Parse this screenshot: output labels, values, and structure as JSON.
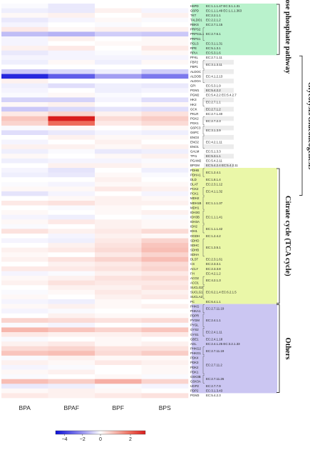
{
  "chart_data": {
    "type": "heatmap",
    "columns": [
      "BPA",
      "BPAF",
      "BPF",
      "BPS"
    ],
    "rows": [
      {
        "gene": "H6PD",
        "ec": [
          "EC:1.1.1.47",
          "EC:3.1.1.31"
        ],
        "values": [
          -0.1,
          -0.4,
          0.0,
          0.0
        ]
      },
      {
        "gene": "G6PD",
        "ec": [
          "EC:1.1.1.49",
          "EC:1.1.1.363"
        ],
        "values": [
          -0.3,
          -0.4,
          0.2,
          -0.2
        ]
      },
      {
        "gene": "TKT",
        "ec": [
          "EC:2.2.1.1"
        ],
        "values": [
          0.1,
          0.2,
          0.0,
          0.2
        ]
      },
      {
        "gene": "TALDO1",
        "ec": [
          "EC:2.2.1.2"
        ],
        "values": [
          -0.4,
          -0.2,
          0.1,
          -0.1
        ]
      },
      {
        "gene": "RBKS",
        "ec": [
          "EC:2.7.1.15"
        ],
        "values": [
          -0.2,
          0.0,
          -0.1,
          0.0
        ]
      },
      {
        "gene": "PRPS2",
        "ec": [
          "EC:2.7.6.1"
        ],
        "values": [
          0.3,
          0.1,
          0.2,
          0.2
        ]
      },
      {
        "gene": "PRPS1L1",
        "ec": [
          "EC:2.7.6.1"
        ],
        "values": [
          -1.2,
          -1.4,
          -0.9,
          -1.0
        ]
      },
      {
        "gene": "PRPS1",
        "ec": [
          "EC:2.7.6.1"
        ],
        "values": [
          -0.2,
          0.2,
          0.0,
          0.1
        ]
      },
      {
        "gene": "PGLS",
        "ec": [
          "EC:3.1.1.31"
        ],
        "values": [
          -0.2,
          0.0,
          0.1,
          0.1
        ]
      },
      {
        "gene": "RPE",
        "ec": [
          "EC:5.1.3.1"
        ],
        "values": [
          0.2,
          0.3,
          0.0,
          0.3
        ]
      },
      {
        "gene": "RPIA",
        "ec": [
          "EC:5.3.1.6"
        ],
        "values": [
          -0.4,
          -0.2,
          -0.1,
          0.1
        ]
      },
      {
        "gene": "PFKL",
        "ec": [
          "EC:2.7.1.11"
        ],
        "values": [
          -0.2,
          -0.2,
          -0.2,
          -0.2
        ]
      },
      {
        "gene": "FBP2",
        "ec": [
          "EC:3.1.3.11"
        ],
        "values": [
          -0.3,
          0.1,
          -0.3,
          0.1
        ]
      },
      {
        "gene": "FBP1",
        "ec": [
          "EC:3.1.3.11"
        ],
        "values": [
          0.0,
          0.0,
          0.0,
          0.0
        ]
      },
      {
        "gene": "ALDOC",
        "ec": [
          "EC:4.1.2.13"
        ],
        "values": [
          -1.0,
          -0.7,
          -0.3,
          -0.9
        ]
      },
      {
        "gene": "ALDOB",
        "ec": [
          "EC:4.1.2.13"
        ],
        "values": [
          -4.4,
          -3.2,
          -1.8,
          -2.6
        ]
      },
      {
        "gene": "ALDOA",
        "ec": [
          "EC:4.1.2.13"
        ],
        "values": [
          0.2,
          0.0,
          0.0,
          0.0
        ]
      },
      {
        "gene": "GPI",
        "ec": [
          "EC:5.3.1.9"
        ],
        "values": [
          -0.3,
          -0.6,
          -0.3,
          -0.4
        ]
      },
      {
        "gene": "PGM1",
        "ec": [
          "EC:5.4.2.2"
        ],
        "values": [
          -0.2,
          0.0,
          -0.3,
          -0.2
        ]
      },
      {
        "gene": "PGM2",
        "ec": [
          "EC:5.4.2.2",
          "EC:5.4.2.7"
        ],
        "values": [
          -0.1,
          0.1,
          -0.1,
          0.0
        ]
      },
      {
        "gene": "HK3",
        "ec": [
          "EC:2.7.1.1"
        ],
        "values": [
          -0.8,
          -0.8,
          -0.2,
          -0.6
        ]
      },
      {
        "gene": "HK2",
        "ec": [
          "EC:2.7.1.1"
        ],
        "values": [
          0.1,
          0.2,
          0.0,
          0.1
        ]
      },
      {
        "gene": "GCK",
        "ec": [
          "EC:2.7.1.2"
        ],
        "values": [
          -1.0,
          -0.7,
          -0.5,
          -0.6
        ]
      },
      {
        "gene": "PKLR",
        "ec": [
          "EC:2.7.1.40"
        ],
        "values": [
          0.3,
          0.6,
          0.2,
          0.4
        ]
      },
      {
        "gene": "PGK2",
        "ec": [
          "EC:2.7.2.3"
        ],
        "values": [
          0.8,
          3.6,
          0.5,
          0.7
        ]
      },
      {
        "gene": "PGK1",
        "ec": [
          "EC:2.7.2.3"
        ],
        "values": [
          0.6,
          2.0,
          0.3,
          0.5
        ]
      },
      {
        "gene": "G6PC3",
        "ec": [
          "EC:3.1.3.9"
        ],
        "values": [
          -0.1,
          0.1,
          0.0,
          0.1
        ]
      },
      {
        "gene": "G6PC",
        "ec": [
          "EC:3.1.3.9"
        ],
        "values": [
          -0.6,
          -0.4,
          -0.2,
          -0.3
        ]
      },
      {
        "gene": "ENO3",
        "ec": [
          "EC:4.2.1.11"
        ],
        "values": [
          0.0,
          0.2,
          0.1,
          0.1
        ]
      },
      {
        "gene": "ENO2",
        "ec": [
          "EC:4.2.1.11"
        ],
        "values": [
          -0.2,
          0.0,
          0.2,
          0.0
        ]
      },
      {
        "gene": "ENO1",
        "ec": [
          "EC:4.2.1.11"
        ],
        "values": [
          0.2,
          0.2,
          0.1,
          0.2
        ]
      },
      {
        "gene": "GALM",
        "ec": [
          "EC:5.1.3.3"
        ],
        "values": [
          -0.3,
          -0.1,
          -0.4,
          -0.3
        ]
      },
      {
        "gene": "TPI1",
        "ec": [
          "EC:5.3.1.1"
        ],
        "values": [
          0.1,
          0.0,
          0.1,
          0.2
        ]
      },
      {
        "gene": "PGAM2",
        "ec": [
          "EC:5.4.2.11"
        ],
        "values": [
          -0.3,
          -0.2,
          -0.2,
          -0.1
        ]
      },
      {
        "gene": "BPGM",
        "ec": [
          "EC:5.4.2.4",
          "EC:5.4.2.11"
        ],
        "values": [
          0.0,
          0.2,
          0.2,
          0.1
        ]
      },
      {
        "gene": "PDHB",
        "ec": [
          "EC:1.2.4.1"
        ],
        "values": [
          -0.2,
          -0.5,
          0.0,
          -0.3
        ]
      },
      {
        "gene": "PDHA1",
        "ec": [
          "EC:1.2.4.1"
        ],
        "values": [
          -0.3,
          -0.4,
          0.1,
          -0.1
        ]
      },
      {
        "gene": "DLD",
        "ec": [
          "EC:1.8.1.4"
        ],
        "values": [
          0.0,
          0.0,
          0.2,
          0.0
        ]
      },
      {
        "gene": "DLAT",
        "ec": [
          "EC:2.3.1.12"
        ],
        "values": [
          -0.1,
          -0.2,
          0.1,
          0.1
        ]
      },
      {
        "gene": "PCK2",
        "ec": [
          "EC:4.1.1.32"
        ],
        "values": [
          0.1,
          0.1,
          0.3,
          0.2
        ]
      },
      {
        "gene": "PCK1",
        "ec": [
          "EC:4.1.1.32"
        ],
        "values": [
          -0.5,
          -0.2,
          0.0,
          -0.2
        ]
      },
      {
        "gene": "MDH2",
        "ec": [
          "EC:1.1.1.37"
        ],
        "values": [
          0.0,
          0.1,
          0.2,
          0.1
        ]
      },
      {
        "gene": "MDH1B",
        "ec": [
          "EC:1.1.1.37"
        ],
        "values": [
          0.3,
          0.4,
          0.2,
          0.2
        ]
      },
      {
        "gene": "MDH1",
        "ec": [
          "EC:1.1.1.37"
        ],
        "values": [
          0.0,
          -0.1,
          0.1,
          0.0
        ]
      },
      {
        "gene": "IDH3G",
        "ec": [
          "EC:1.1.1.41"
        ],
        "values": [
          0.1,
          0.0,
          0.1,
          0.2
        ]
      },
      {
        "gene": "IDH3B",
        "ec": [
          "EC:1.1.1.41"
        ],
        "values": [
          -0.2,
          -0.3,
          0.0,
          -0.1
        ]
      },
      {
        "gene": "IDH3A",
        "ec": [
          "EC:1.1.1.41"
        ],
        "values": [
          0.1,
          0.3,
          0.2,
          0.1
        ]
      },
      {
        "gene": "IDH2",
        "ec": [
          "EC:1.1.1.42"
        ],
        "values": [
          -0.1,
          0.0,
          0.2,
          0.1
        ]
      },
      {
        "gene": "IDH1",
        "ec": [
          "EC:1.1.1.42"
        ],
        "values": [
          0.4,
          0.2,
          0.3,
          0.5
        ]
      },
      {
        "gene": "OGDH",
        "ec": [
          "EC:1.2.4.2"
        ],
        "values": [
          0.0,
          -0.2,
          0.2,
          0.1
        ]
      },
      {
        "gene": "SDHD",
        "ec": [
          "EC:1.3.5.1"
        ],
        "values": [
          -0.2,
          -0.3,
          0.3,
          0.6
        ]
      },
      {
        "gene": "SDHC",
        "ec": [
          "EC:1.3.5.1"
        ],
        "values": [
          0.0,
          0.2,
          0.4,
          0.8
        ]
      },
      {
        "gene": "SDHB",
        "ec": [
          "EC:1.3.5.1"
        ],
        "values": [
          0.2,
          0.3,
          0.5,
          0.9
        ]
      },
      {
        "gene": "SDHA",
        "ec": [
          "EC:1.3.5.1"
        ],
        "values": [
          0.1,
          0.0,
          0.3,
          0.6
        ]
      },
      {
        "gene": "DLST",
        "ec": [
          "EC:2.3.1.61"
        ],
        "values": [
          0.2,
          0.4,
          0.6,
          0.9
        ]
      },
      {
        "gene": "CS",
        "ec": [
          "EC:2.3.3.1"
        ],
        "values": [
          0.0,
          0.2,
          0.3,
          0.5
        ]
      },
      {
        "gene": "ACLY",
        "ec": [
          "EC:2.3.3.8"
        ],
        "values": [
          0.3,
          0.3,
          0.4,
          0.6
        ]
      },
      {
        "gene": "FH",
        "ec": [
          "EC:4.2.1.2"
        ],
        "values": [
          -0.2,
          -0.1,
          0.2,
          0.3
        ]
      },
      {
        "gene": "ACO2",
        "ec": [
          "EC:4.2.1.3"
        ],
        "values": [
          0.1,
          0.2,
          0.4,
          0.5
        ]
      },
      {
        "gene": "ACO1",
        "ec": [
          "EC:4.2.1.3"
        ],
        "values": [
          0.2,
          0.4,
          0.3,
          0.3
        ]
      },
      {
        "gene": "SUCLG2",
        "ec": [
          "EC:6.2.1.4",
          "EC:6.2.1.5"
        ],
        "values": [
          0.0,
          0.2,
          0.2,
          0.4
        ]
      },
      {
        "gene": "SUCLG1",
        "ec": [
          "EC:6.2.1.4",
          "EC:6.2.1.5"
        ],
        "values": [
          -0.1,
          0.1,
          0.3,
          0.2
        ]
      },
      {
        "gene": "SUCLA2",
        "ec": [
          "EC:6.2.1.4",
          "EC:6.2.1.5"
        ],
        "values": [
          0.1,
          0.0,
          0.2,
          0.3
        ]
      },
      {
        "gene": "PC",
        "ec": [
          "EC:6.4.1.1"
        ],
        "values": [
          -0.2,
          -0.3,
          0.1,
          0.0
        ]
      },
      {
        "gene": "PHKG",
        "ec": [
          "EC:2.7.11.19"
        ],
        "values": [
          0.1,
          0.2,
          0.1,
          0.2
        ]
      },
      {
        "gene": "PHKA1",
        "ec": [
          "EC:2.7.11.19"
        ],
        "values": [
          -0.2,
          -0.1,
          0.0,
          0.0
        ]
      },
      {
        "gene": "PDPR",
        "ec": [
          "EC:2.4.1.1"
        ],
        "values": [
          0.0,
          0.2,
          0.1,
          0.1
        ]
      },
      {
        "gene": "PYGM",
        "ec": [
          "EC:2.4.1.1"
        ],
        "values": [
          0.6,
          0.5,
          0.4,
          0.5
        ]
      },
      {
        "gene": "PYGL",
        "ec": [
          "EC:2.4.1.1"
        ],
        "values": [
          -0.1,
          -0.2,
          0.0,
          -0.1
        ]
      },
      {
        "gene": "GYS2",
        "ec": [
          "EC:2.4.1.11"
        ],
        "values": [
          1.0,
          0.8,
          0.6,
          0.8
        ]
      },
      {
        "gene": "GYS1",
        "ec": [
          "EC:2.4.1.11"
        ],
        "values": [
          0.3,
          0.2,
          0.2,
          0.3
        ]
      },
      {
        "gene": "GBE1",
        "ec": [
          "EC:2.4.1.18"
        ],
        "values": [
          -0.1,
          0.0,
          0.1,
          0.0
        ]
      },
      {
        "gene": "AGL",
        "ec": [
          "EC:2.4.1.25",
          "EC:3.2.1.33"
        ],
        "values": [
          0.2,
          0.3,
          0.1,
          0.2
        ]
      },
      {
        "gene": "PHKG2",
        "ec": [
          "EC:2.7.11.19"
        ],
        "values": [
          0.5,
          0.6,
          0.4,
          0.4
        ]
      },
      {
        "gene": "PHKG1",
        "ec": [
          "EC:2.7.11.19"
        ],
        "values": [
          0.8,
          0.9,
          0.5,
          0.7
        ]
      },
      {
        "gene": "PDK4",
        "ec": [
          "EC:2.7.11.2"
        ],
        "values": [
          -0.1,
          0.2,
          0.1,
          0.1
        ]
      },
      {
        "gene": "PDK3",
        "ec": [
          "EC:2.7.11.2"
        ],
        "values": [
          0.2,
          0.1,
          0.3,
          0.2
        ]
      },
      {
        "gene": "PDK2",
        "ec": [
          "EC:2.7.11.2"
        ],
        "values": [
          -0.2,
          -0.1,
          0.0,
          0.1
        ]
      },
      {
        "gene": "PDK1",
        "ec": [
          "EC:2.7.11.2"
        ],
        "values": [
          0.1,
          0.2,
          0.0,
          0.1
        ]
      },
      {
        "gene": "GSK3B",
        "ec": [
          "EC:2.7.11.26"
        ],
        "values": [
          -0.1,
          0.0,
          0.1,
          -0.1
        ]
      },
      {
        "gene": "GSK3A",
        "ec": [
          "EC:2.7.11.26"
        ],
        "values": [
          0.9,
          0.7,
          1.1,
          0.6
        ]
      },
      {
        "gene": "UGP2",
        "ec": [
          "EC:2.7.7.9"
        ],
        "values": [
          -0.4,
          -0.3,
          -0.1,
          -0.2
        ]
      },
      {
        "gene": "PDP2",
        "ec": [
          "EC:3.1.3.43"
        ],
        "values": [
          0.1,
          0.2,
          0.1,
          0.0
        ]
      },
      {
        "gene": "PGM3",
        "ec": [
          "EC:5.4.2.3"
        ],
        "values": [
          0.3,
          0.2,
          0.3,
          0.4
        ]
      }
    ],
    "pathways": [
      {
        "name": "Pentose phosphate pathway",
        "start": 0,
        "end": 10,
        "color": "#b9f2cc"
      },
      {
        "name": "Glycolysis/Gluconeogenesis",
        "start": 11,
        "end": 40,
        "color": "#ffffff"
      },
      {
        "name": "Citrate cycle (TCA cycle)",
        "start": 35,
        "end": 63,
        "color": "#eaf7a8"
      },
      {
        "name": "Others",
        "start": 64,
        "end": 82,
        "color": "#cbc6f2"
      }
    ],
    "colorbar": {
      "min": -5,
      "max": 3,
      "ticks": [
        -4,
        -2,
        0,
        2
      ],
      "tick_labels": [
        "−4",
        "−2",
        "0",
        "2"
      ],
      "colors": [
        "#0a0fd8",
        "#5a58e8",
        "#a8a4f3",
        "#ffffff",
        "#f7b7ad",
        "#ee6a5a",
        "#d91d1d"
      ]
    },
    "grid": false
  }
}
